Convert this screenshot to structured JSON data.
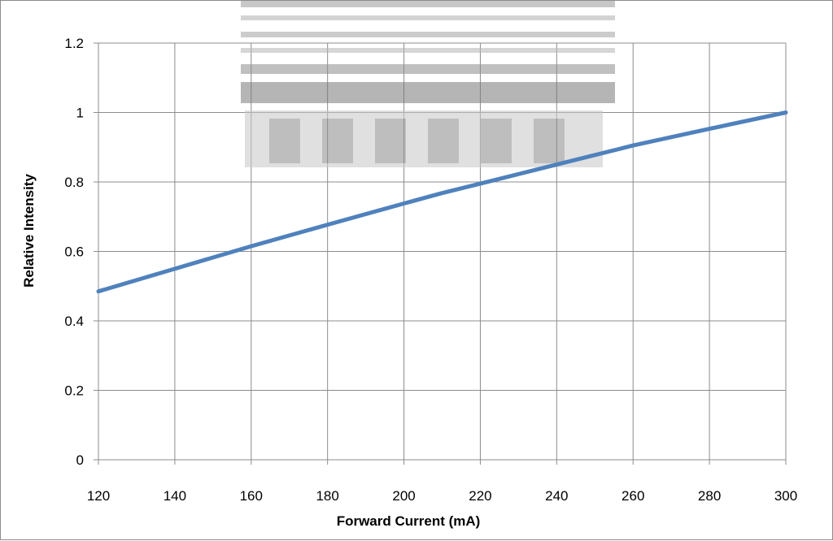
{
  "colors": {
    "series_line": "#4f81bd",
    "gridline": "#8c8c8c",
    "watermark": "#bdbdbd"
  },
  "chart_data": {
    "type": "line",
    "title": "",
    "xlabel": "Forward Current (mA)",
    "ylabel": "Relative Intensity",
    "xlim": [
      120,
      300
    ],
    "ylim": [
      0,
      1.2
    ],
    "x_ticks": [
      120,
      140,
      160,
      180,
      200,
      220,
      240,
      260,
      280,
      300
    ],
    "y_ticks": [
      0,
      0.2,
      0.4,
      0.6,
      0.8,
      1,
      1.2
    ],
    "grid": true,
    "legend": "none",
    "series": [
      {
        "x": [
          120,
          140,
          160,
          180,
          200,
          210,
          220,
          240,
          260,
          280,
          300
        ],
        "y": [
          0.485,
          0.55,
          0.615,
          0.677,
          0.738,
          0.768,
          0.795,
          0.85,
          0.905,
          0.953,
          1.0
        ]
      }
    ]
  }
}
